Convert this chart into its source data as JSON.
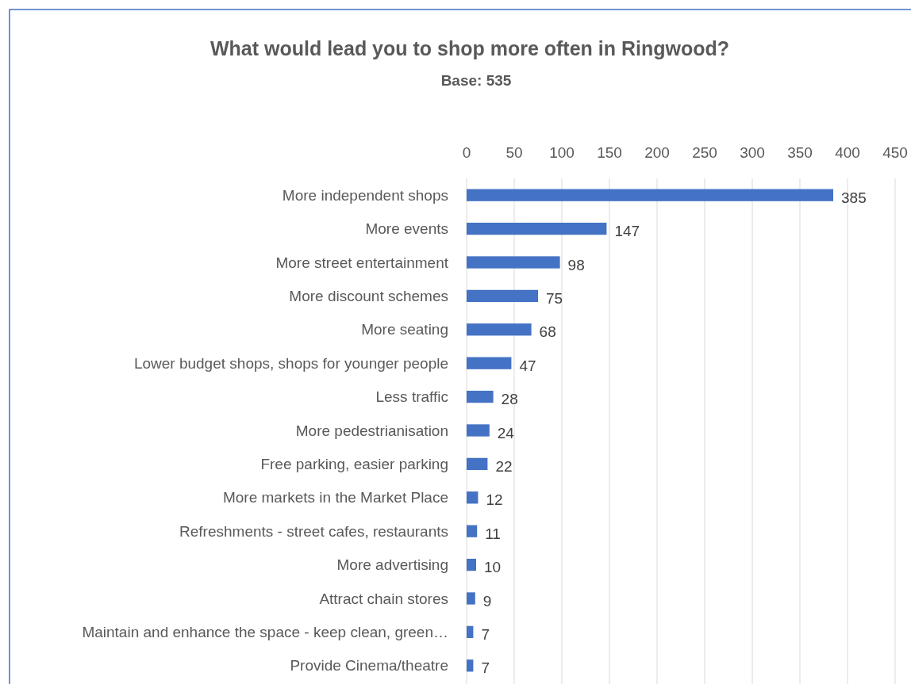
{
  "chart_data": {
    "type": "bar",
    "orientation": "horizontal",
    "title": "What would lead you to shop more often in Ringwood?",
    "subtitle": "Base: 535",
    "categories": [
      "More independent shops",
      "More events",
      "More street entertainment",
      "More discount schemes",
      "More seating",
      "Lower budget shops, shops for younger people",
      "Less traffic",
      "More pedestrianisation",
      "Free parking, easier parking",
      "More markets in the Market Place",
      "Refreshments - street cafes, restaurants",
      "More advertising",
      "Attract chain stores",
      "Maintain and enhance the space - keep clean, green…",
      "Provide Cinema/theatre"
    ],
    "values": [
      385,
      147,
      98,
      75,
      68,
      47,
      28,
      24,
      22,
      12,
      11,
      10,
      9,
      7,
      7
    ],
    "color": "#4472c4",
    "xlim": [
      0,
      450
    ],
    "xticks": [
      0,
      50,
      100,
      150,
      200,
      250,
      300,
      350,
      400,
      450
    ],
    "grid": "x",
    "data_labels": true
  }
}
